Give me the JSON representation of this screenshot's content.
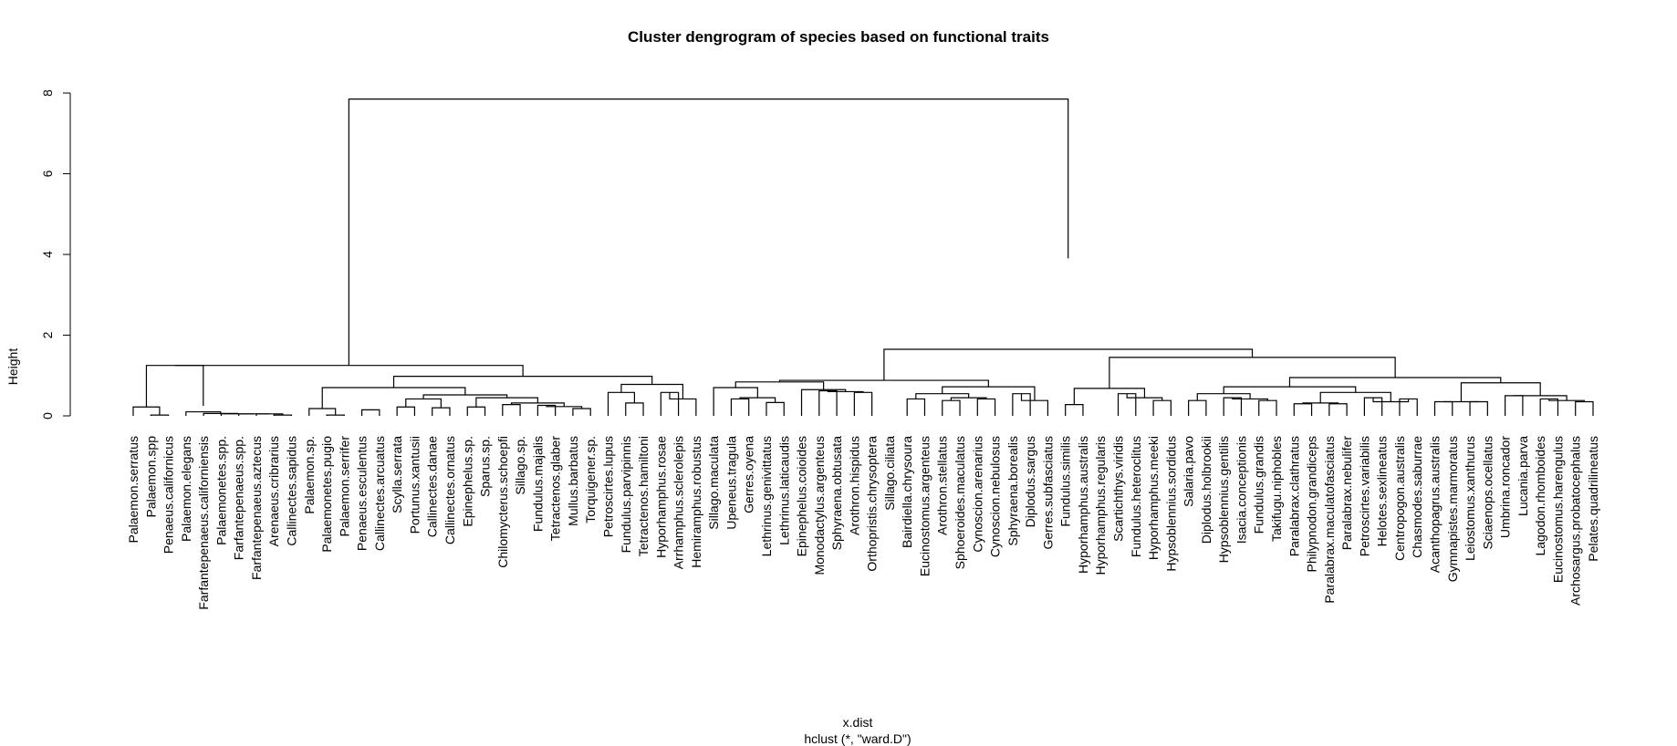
{
  "chart_data": {
    "type": "dendrogram",
    "title": "Cluster dengrogram of species based on functional traits",
    "xlabel": "x.dist",
    "sublabel": "hclust (*, \"ward.D\")",
    "ylabel": "Height",
    "ylim": [
      0,
      8
    ],
    "yticks": [
      0,
      2,
      4,
      6,
      8
    ],
    "leaves": [
      "Palaemon.serratus",
      "Palaemon.spp",
      "Penaeus.californicus",
      "Palaemon.elegans",
      "Farfantepenaeus.californiensis",
      "Palaemonetes.spp.",
      "Farfantepenaeus.spp.",
      "Farfantepenaeus.aztecus",
      "Arenaeus.cribrarius",
      "Callinectes.sapidus",
      "Palaemon.sp.",
      "Palaemonetes.pugio",
      "Palaemon.serrifer",
      "Penaeus.esculentus",
      "Callinectes.arcuatus",
      "Scylla.serrata",
      "Portunus.xantusii",
      "Callinectes.danae",
      "Callinectes.ornatus",
      "Epinephelus.sp.",
      "Sparus.sp.",
      "Chilomycterus.schoepfi",
      "Sillago.sp.",
      "Fundulus.majalis",
      "Tetractenos.glaber",
      "Mullus.barbatus",
      "Torquigener.sp.",
      "Petroscirtes.lupus",
      "Fundulus.parvipinnis",
      "Tetractenos.hamiltoni",
      "Hyporhamphus.rosae",
      "Arrhamphus.sclerolepis",
      "Hemiramphus.robustus",
      "Sillago.maculata",
      "Upeneus.tragula",
      "Gerres.oyena",
      "Lethrinus.genivittatus",
      "Lethrinus.laticaudis",
      "Epinephelus.coioides",
      "Monodactylus.argenteus",
      "Sphyraena.obtusata",
      "Arothron.hispidus",
      "Orthopristis.chrysoptera",
      "Sillago.ciliata",
      "Bairdiella.chrysoura",
      "Eucinostomus.argenteus",
      "Arothron.stellatus",
      "Sphoeroides.maculatus",
      "Cynoscion.arenarius",
      "Cynoscion.nebulosus",
      "Sphyraena.borealis",
      "Diplodus.sargus",
      "Gerres.subfasciatus",
      "Fundulus.similis",
      "Hyporhamphus.australis",
      "Hyporhamphus.regularis",
      "Scartichthys.viridis",
      "Fundulus.heteroclitus",
      "Hyporhamphus.meeki",
      "Hypsoblennius.sordidus",
      "Salaria.pavo",
      "Diplodus.holbrookii",
      "Hypsoblennius.gentilis",
      "Isacia.conceptionis",
      "Fundulus.grandis",
      "Takifugu.niphobles",
      "Paralabrax.clathratus",
      "Philypnodon.grandiceps",
      "Paralabrax.maculatofasciatus",
      "Paralabrax.nebulifer",
      "Petroscirtes.variabilis",
      "Helotes.sexlineatus",
      "Centropogon.australis",
      "Chasmodes.saburrae",
      "Acanthopagrus.australis",
      "Gymnapistes.marmoratus",
      "Leiostomus.xanthurus",
      "Sciaenops.ocellatus",
      "Umbrina.roncador",
      "Lucania.parva",
      "Lagodon.rhomboides",
      "Eucinostomus.harengulus",
      "Archosargus.probatocephalus",
      "Pelates.quadrilineatus"
    ],
    "merges": [
      [
        1,
        2,
        0.02
      ],
      [
        11,
        12,
        0.02
      ],
      [
        8,
        9,
        0.02
      ],
      [
        7,
        8,
        0.05
      ],
      [
        6,
        7,
        0.05
      ],
      [
        5,
        6,
        0.05
      ],
      [
        4,
        5,
        0.06
      ],
      [
        3,
        4,
        0.1
      ],
      [
        0,
        1,
        0.22
      ],
      [
        3,
        3,
        0.25
      ],
      [
        0,
        3,
        1.25
      ],
      [
        13,
        14,
        0.15
      ],
      [
        10,
        11,
        0.18
      ],
      [
        17,
        18,
        0.2
      ],
      [
        15,
        16,
        0.22
      ],
      [
        15,
        17,
        0.42
      ],
      [
        21,
        22,
        0.28
      ],
      [
        23,
        24,
        0.26
      ],
      [
        25,
        26,
        0.18
      ],
      [
        23,
        25,
        0.23
      ],
      [
        21,
        23,
        0.32
      ],
      [
        19,
        20,
        0.22
      ],
      [
        19,
        21,
        0.45
      ],
      [
        15,
        19,
        0.52
      ],
      [
        10,
        15,
        0.7
      ],
      [
        28,
        29,
        0.32
      ],
      [
        27,
        28,
        0.58
      ],
      [
        30,
        31,
        0.58
      ],
      [
        30,
        32,
        0.42
      ],
      [
        27,
        30,
        0.78
      ],
      [
        10,
        27,
        0.98
      ],
      [
        0,
        10,
        1.25
      ],
      [
        34,
        35,
        0.42
      ],
      [
        36,
        37,
        0.33
      ],
      [
        34,
        36,
        0.45
      ],
      [
        33,
        34,
        0.7
      ],
      [
        39,
        40,
        0.62
      ],
      [
        41,
        42,
        0.58
      ],
      [
        39,
        41,
        0.6
      ],
      [
        38,
        39,
        0.65
      ],
      [
        33,
        38,
        0.84
      ],
      [
        44,
        45,
        0.42
      ],
      [
        46,
        47,
        0.38
      ],
      [
        48,
        49,
        0.42
      ],
      [
        46,
        48,
        0.45
      ],
      [
        44,
        46,
        0.55
      ],
      [
        50,
        51,
        0.55
      ],
      [
        50,
        52,
        0.38
      ],
      [
        44,
        50,
        0.72
      ],
      [
        33,
        44,
        0.88
      ],
      [
        53,
        54,
        0.28
      ],
      [
        56,
        57,
        0.55
      ],
      [
        58,
        59,
        0.38
      ],
      [
        56,
        58,
        0.45
      ],
      [
        53,
        56,
        0.68
      ],
      [
        60,
        61,
        0.38
      ],
      [
        62,
        63,
        0.45
      ],
      [
        64,
        65,
        0.38
      ],
      [
        62,
        64,
        0.42
      ],
      [
        60,
        62,
        0.55
      ],
      [
        66,
        67,
        0.3
      ],
      [
        68,
        69,
        0.3
      ],
      [
        66,
        68,
        0.32
      ],
      [
        70,
        71,
        0.45
      ],
      [
        72,
        73,
        0.42
      ],
      [
        70,
        72,
        0.35
      ],
      [
        66,
        70,
        0.58
      ],
      [
        60,
        66,
        0.72
      ],
      [
        74,
        75,
        0.35
      ],
      [
        76,
        77,
        0.35
      ],
      [
        74,
        76,
        0.35
      ],
      [
        78,
        79,
        0.5
      ],
      [
        80,
        81,
        0.42
      ],
      [
        82,
        83,
        0.35
      ],
      [
        80,
        82,
        0.38
      ],
      [
        78,
        80,
        0.5
      ],
      [
        74,
        78,
        0.82
      ],
      [
        60,
        74,
        0.95
      ],
      [
        53,
        60,
        1.45
      ],
      [
        33,
        53,
        1.65
      ],
      [
        33,
        33,
        3.9
      ],
      [
        0,
        33,
        7.85
      ]
    ]
  }
}
